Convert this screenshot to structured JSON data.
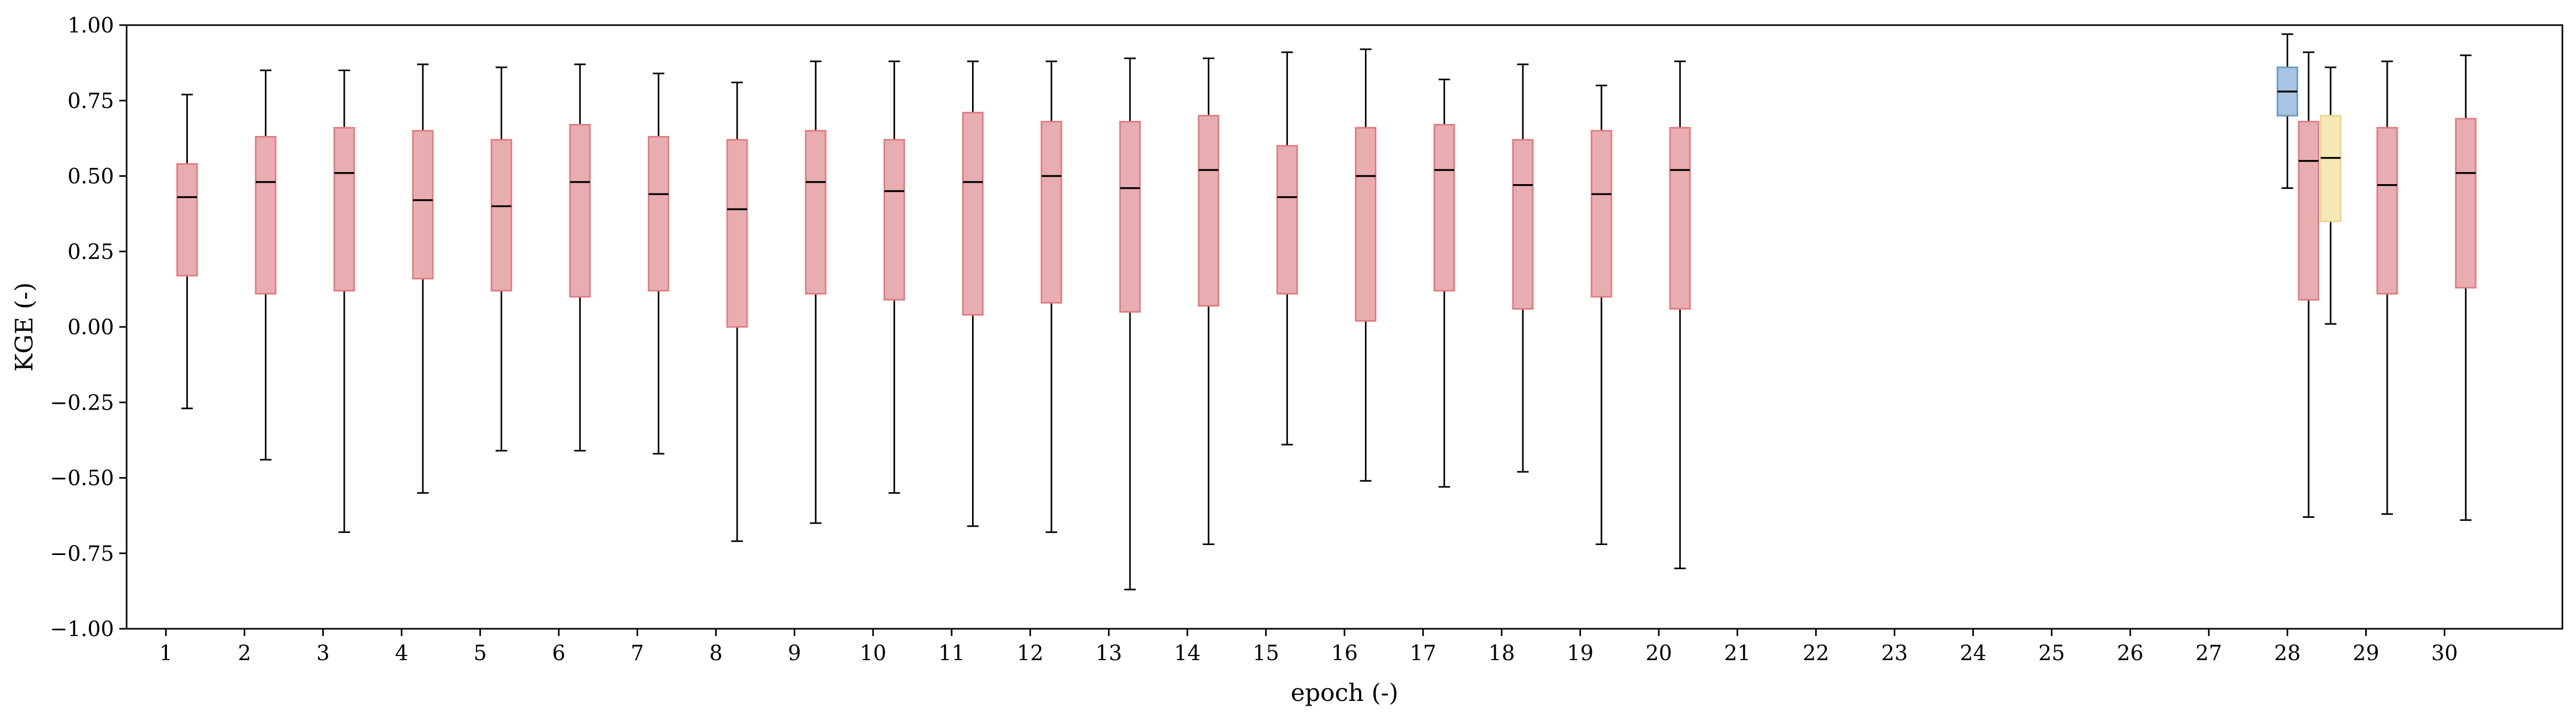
{
  "chart_data": {
    "type": "box",
    "xlabel": "epoch (-)",
    "ylabel": "KGE (-)",
    "ylim": [
      -1.0,
      1.0
    ],
    "xlim": [
      0.5,
      31.5
    ],
    "yticks": [
      -1.0,
      -0.75,
      -0.5,
      -0.25,
      0.0,
      0.25,
      0.5,
      0.75,
      1.0
    ],
    "ytick_labels": [
      "−1.00",
      "−0.75",
      "−0.50",
      "−0.25",
      "0.00",
      "0.25",
      "0.50",
      "0.75",
      "1.00"
    ],
    "xticks": [
      1,
      2,
      3,
      4,
      5,
      6,
      7,
      8,
      9,
      10,
      11,
      12,
      13,
      14,
      15,
      16,
      17,
      18,
      19,
      20,
      21,
      22,
      23,
      24,
      25,
      26,
      27,
      28,
      29,
      30
    ],
    "xtick_labels": [
      "1",
      "2",
      "3",
      "4",
      "5",
      "6",
      "7",
      "8",
      "9",
      "10",
      "11",
      "12",
      "13",
      "14",
      "15",
      "16",
      "17",
      "18",
      "19",
      "20",
      "21",
      "22",
      "23",
      "24",
      "25",
      "26",
      "27",
      "28",
      "29",
      "30"
    ],
    "grid": false,
    "colors": {
      "red_fill": "#e8adb0",
      "red_edge": "#e07b7f",
      "blue_fill": "#a8c4e0",
      "blue_edge": "#6b97c4",
      "yellow_fill": "#f7e9b5",
      "yellow_edge": "#e9d48a",
      "line": "#000000"
    },
    "series": [
      {
        "color": "red",
        "boxes": [
          {
            "x": 1.27,
            "whislo": -0.27,
            "q1": 0.17,
            "med": 0.43,
            "q3": 0.54,
            "whishi": 0.77
          },
          {
            "x": 2.27,
            "whislo": -0.44,
            "q1": 0.11,
            "med": 0.48,
            "q3": 0.63,
            "whishi": 0.85
          },
          {
            "x": 3.27,
            "whislo": -0.68,
            "q1": 0.12,
            "med": 0.51,
            "q3": 0.66,
            "whishi": 0.85
          },
          {
            "x": 4.27,
            "whislo": -0.55,
            "q1": 0.16,
            "med": 0.42,
            "q3": 0.65,
            "whishi": 0.87
          },
          {
            "x": 5.27,
            "whislo": -0.41,
            "q1": 0.12,
            "med": 0.4,
            "q3": 0.62,
            "whishi": 0.86
          },
          {
            "x": 6.27,
            "whislo": -0.41,
            "q1": 0.1,
            "med": 0.48,
            "q3": 0.67,
            "whishi": 0.87
          },
          {
            "x": 7.27,
            "whislo": -0.42,
            "q1": 0.12,
            "med": 0.44,
            "q3": 0.63,
            "whishi": 0.84
          },
          {
            "x": 8.27,
            "whislo": -0.71,
            "q1": 0.0,
            "med": 0.39,
            "q3": 0.62,
            "whishi": 0.81
          },
          {
            "x": 9.27,
            "whislo": -0.65,
            "q1": 0.11,
            "med": 0.48,
            "q3": 0.65,
            "whishi": 0.88
          },
          {
            "x": 10.27,
            "whislo": -0.55,
            "q1": 0.09,
            "med": 0.45,
            "q3": 0.62,
            "whishi": 0.88
          },
          {
            "x": 11.27,
            "whislo": -0.66,
            "q1": 0.04,
            "med": 0.48,
            "q3": 0.71,
            "whishi": 0.88
          },
          {
            "x": 12.27,
            "whislo": -0.68,
            "q1": 0.08,
            "med": 0.5,
            "q3": 0.68,
            "whishi": 0.88
          },
          {
            "x": 13.27,
            "whislo": -0.87,
            "q1": 0.05,
            "med": 0.46,
            "q3": 0.68,
            "whishi": 0.89
          },
          {
            "x": 14.27,
            "whislo": -0.72,
            "q1": 0.07,
            "med": 0.52,
            "q3": 0.7,
            "whishi": 0.89
          },
          {
            "x": 15.27,
            "whislo": -0.39,
            "q1": 0.11,
            "med": 0.43,
            "q3": 0.6,
            "whishi": 0.91
          },
          {
            "x": 16.27,
            "whislo": -0.51,
            "q1": 0.02,
            "med": 0.5,
            "q3": 0.66,
            "whishi": 0.92
          },
          {
            "x": 17.27,
            "whislo": -0.53,
            "q1": 0.12,
            "med": 0.52,
            "q3": 0.67,
            "whishi": 0.82
          },
          {
            "x": 18.27,
            "whislo": -0.48,
            "q1": 0.06,
            "med": 0.47,
            "q3": 0.62,
            "whishi": 0.87
          },
          {
            "x": 19.27,
            "whislo": -0.72,
            "q1": 0.1,
            "med": 0.44,
            "q3": 0.65,
            "whishi": 0.8
          },
          {
            "x": 20.27,
            "whislo": -0.8,
            "q1": 0.06,
            "med": 0.52,
            "q3": 0.66,
            "whishi": 0.88
          },
          {
            "x": 28.27,
            "whislo": -0.63,
            "q1": 0.09,
            "med": 0.55,
            "q3": 0.68,
            "whishi": 0.91
          },
          {
            "x": 29.27,
            "whislo": -0.62,
            "q1": 0.11,
            "med": 0.47,
            "q3": 0.66,
            "whishi": 0.88
          },
          {
            "x": 30.27,
            "whislo": -0.64,
            "q1": 0.13,
            "med": 0.51,
            "q3": 0.69,
            "whishi": 0.9
          }
        ]
      },
      {
        "color": "blue",
        "boxes": [
          {
            "x": 28.0,
            "whislo": 0.46,
            "q1": 0.7,
            "med": 0.78,
            "q3": 0.86,
            "whishi": 0.97
          }
        ]
      },
      {
        "color": "yellow",
        "boxes": [
          {
            "x": 28.55,
            "whislo": 0.01,
            "q1": 0.35,
            "med": 0.56,
            "q3": 0.7,
            "whishi": 0.86
          }
        ]
      }
    ]
  }
}
